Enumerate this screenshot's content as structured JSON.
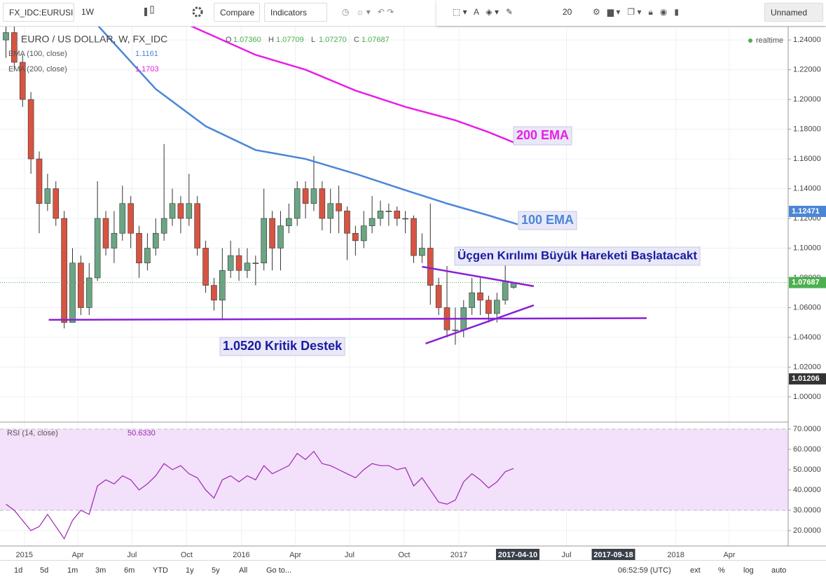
{
  "toolbar": {
    "symbol": "FX_IDC:EURUSI",
    "interval": "1W",
    "compare": "Compare",
    "indicators": "Indicators",
    "size": "20",
    "layout": "Unnamed"
  },
  "chart_data": [
    {
      "type": "candlestick",
      "title": "EURO / US DOLLAR, W, FX_IDC",
      "ohlc_legend": [
        "O",
        "1.07360",
        "H",
        "1.07709",
        "L",
        "1.07270",
        "C",
        "1.07687"
      ],
      "status": "realtime",
      "x": [
        "2014-12-01",
        "2014-12-15",
        "2014-12-29",
        "2015-01-12",
        "2015-01-26",
        "2015-02-09",
        "2015-02-23",
        "2015-03-09",
        "2015-03-23",
        "2015-04-06",
        "2015-04-20",
        "2015-05-04",
        "2015-05-18",
        "2015-06-01",
        "2015-06-15",
        "2015-06-29",
        "2015-07-13",
        "2015-07-27",
        "2015-08-10",
        "2015-08-24",
        "2015-09-07",
        "2015-09-21",
        "2015-10-05",
        "2015-10-19",
        "2015-11-02",
        "2015-11-16",
        "2015-11-30",
        "2015-12-14",
        "2015-12-28",
        "2016-01-11",
        "2016-01-25",
        "2016-02-08",
        "2016-02-22",
        "2016-03-07",
        "2016-03-21",
        "2016-04-04",
        "2016-04-18",
        "2016-05-02",
        "2016-05-16",
        "2016-05-30",
        "2016-06-13",
        "2016-06-27",
        "2016-07-11",
        "2016-07-25",
        "2016-08-08",
        "2016-08-22",
        "2016-09-05",
        "2016-09-19",
        "2016-10-03",
        "2016-10-17",
        "2016-10-31",
        "2016-11-14",
        "2016-11-28",
        "2016-12-12",
        "2016-12-26",
        "2017-01-09",
        "2017-01-23",
        "2017-02-06",
        "2017-02-20",
        "2017-03-06",
        "2017-03-20",
        "2017-04-03"
      ],
      "open": [
        1.24,
        1.245,
        1.225,
        1.2,
        1.16,
        1.13,
        1.14,
        1.12,
        1.05,
        1.09,
        1.06,
        1.08,
        1.12,
        1.1,
        1.11,
        1.13,
        1.11,
        1.09,
        1.1,
        1.11,
        1.12,
        1.13,
        1.12,
        1.13,
        1.1,
        1.075,
        1.065,
        1.085,
        1.095,
        1.085,
        1.09,
        1.09,
        1.12,
        1.1,
        1.115,
        1.12,
        1.14,
        1.13,
        1.14,
        1.12,
        1.13,
        1.125,
        1.11,
        1.105,
        1.115,
        1.12,
        1.125,
        1.125,
        1.12,
        1.12,
        1.095,
        1.1,
        1.075,
        1.06,
        1.045,
        1.045,
        1.06,
        1.07,
        1.065,
        1.056,
        1.065,
        1.0736
      ],
      "high": [
        1.252,
        1.25,
        1.23,
        1.205,
        1.165,
        1.15,
        1.145,
        1.125,
        1.1,
        1.095,
        1.09,
        1.145,
        1.125,
        1.125,
        1.142,
        1.135,
        1.115,
        1.11,
        1.12,
        1.17,
        1.14,
        1.135,
        1.15,
        1.135,
        1.105,
        1.08,
        1.1,
        1.105,
        1.1,
        1.1,
        1.095,
        1.14,
        1.125,
        1.125,
        1.13,
        1.145,
        1.145,
        1.162,
        1.145,
        1.14,
        1.142,
        1.128,
        1.115,
        1.125,
        1.135,
        1.132,
        1.13,
        1.128,
        1.125,
        1.122,
        1.11,
        1.13,
        1.08,
        1.088,
        1.06,
        1.065,
        1.08,
        1.08,
        1.068,
        1.07,
        1.09,
        1.07709
      ],
      "low": [
        1.228,
        1.22,
        1.195,
        1.15,
        1.11,
        1.125,
        1.115,
        1.046,
        1.05,
        1.055,
        1.055,
        1.078,
        1.095,
        1.09,
        1.105,
        1.1,
        1.08,
        1.085,
        1.095,
        1.105,
        1.115,
        1.11,
        1.115,
        1.095,
        1.07,
        1.058,
        1.052,
        1.08,
        1.078,
        1.08,
        1.075,
        1.085,
        1.085,
        1.085,
        1.11,
        1.115,
        1.12,
        1.125,
        1.112,
        1.11,
        1.11,
        1.092,
        1.095,
        1.1,
        1.11,
        1.115,
        1.115,
        1.115,
        1.11,
        1.09,
        1.09,
        1.062,
        1.055,
        1.04,
        1.035,
        1.04,
        1.055,
        1.055,
        1.05,
        1.05,
        1.062,
        1.0727
      ],
      "close": [
        1.245,
        1.225,
        1.2,
        1.16,
        1.13,
        1.14,
        1.12,
        1.05,
        1.09,
        1.06,
        1.08,
        1.12,
        1.1,
        1.11,
        1.13,
        1.11,
        1.09,
        1.1,
        1.11,
        1.12,
        1.13,
        1.12,
        1.13,
        1.1,
        1.075,
        1.065,
        1.085,
        1.095,
        1.085,
        1.09,
        1.09,
        1.12,
        1.1,
        1.115,
        1.12,
        1.14,
        1.13,
        1.14,
        1.12,
        1.13,
        1.125,
        1.11,
        1.105,
        1.115,
        1.12,
        1.125,
        1.125,
        1.12,
        1.12,
        1.095,
        1.1,
        1.075,
        1.06,
        1.045,
        1.045,
        1.06,
        1.07,
        1.065,
        1.056,
        1.065,
        1.078,
        1.07687
      ],
      "up_color": "#6ba583",
      "down_color": "#d75442",
      "lines": [
        {
          "name": "EMA (100, close)",
          "legend_value": "1.1161",
          "color": "#4a86d8",
          "x": [
            "2015-05-04",
            "2015-08-10",
            "2015-11-02",
            "2016-01-25",
            "2016-04-18",
            "2016-07-11",
            "2016-10-03",
            "2016-12-12",
            "2017-02-20",
            "2017-04-10"
          ],
          "values": [
            1.25,
            1.207,
            1.182,
            1.166,
            1.16,
            1.15,
            1.139,
            1.13,
            1.122,
            1.116
          ]
        },
        {
          "name": "EMA (200, close)",
          "legend_value": "1.1703",
          "color": "#e91ee5",
          "x": [
            "2015-10-05",
            "2016-01-25",
            "2016-04-18",
            "2016-07-11",
            "2016-10-03",
            "2016-12-26",
            "2017-02-20",
            "2017-04-10"
          ],
          "values": [
            1.25,
            1.23,
            1.22,
            1.206,
            1.195,
            1.186,
            1.178,
            1.17
          ]
        }
      ],
      "trendlines": [
        {
          "color": "#8a1fd6",
          "x": [
            "2015-02-11",
            "2017-11-13"
          ],
          "values": [
            1.0518,
            1.0529
          ]
        },
        {
          "color": "#8a1fd6",
          "x": [
            "2016-10-31",
            "2017-05-07"
          ],
          "values": [
            1.0875,
            1.0744
          ]
        },
        {
          "color": "#8a1fd6",
          "x": [
            "2016-11-06",
            "2017-05-07"
          ],
          "values": [
            1.0358,
            1.0616
          ]
        }
      ],
      "annotations": [
        {
          "text": "200 EMA",
          "color": "#e91ee5"
        },
        {
          "text": "100 EMA",
          "color": "#4a86d8"
        },
        {
          "text": "Üçgen Kırılımı Büyük Hareketi Başlatacakt",
          "color": "#1a1aa0"
        },
        {
          "text": "1.0520 Kritik Destek",
          "color": "#1a1aa0"
        }
      ],
      "axis_markers": [
        {
          "value": 1.12471,
          "label": "1.12471",
          "color": "#4a86d8"
        },
        {
          "value": 1.07687,
          "label": "1.07687",
          "color": "#4caf50"
        },
        {
          "value": 1.01206,
          "label": "1.01206",
          "color": "#333333"
        }
      ],
      "ylim": [
        0.983,
        1.249
      ],
      "yticks": [
        {
          "value": 1.24,
          "label": "1.24000"
        },
        {
          "value": 1.22,
          "label": "1.22000"
        },
        {
          "value": 1.2,
          "label": "1.20000"
        },
        {
          "value": 1.18,
          "label": "1.18000"
        },
        {
          "value": 1.16,
          "label": "1.16000"
        },
        {
          "value": 1.14,
          "label": "1.14000"
        },
        {
          "value": 1.12,
          "label": "1.12000"
        },
        {
          "value": 1.1,
          "label": "1.10000"
        },
        {
          "value": 1.08,
          "label": "1.08000"
        },
        {
          "value": 1.06,
          "label": "1.06000"
        },
        {
          "value": 1.04,
          "label": "1.04000"
        },
        {
          "value": 1.02,
          "label": "1.02000"
        },
        {
          "value": 1.0,
          "label": "1.00000"
        }
      ],
      "xlim": [
        "2014-11-21",
        "2018-07-09"
      ],
      "xticks": [
        {
          "value": "2015-01-01",
          "label": "2015"
        },
        {
          "value": "2015-04-01",
          "label": "Apr"
        },
        {
          "value": "2015-07-01",
          "label": "Jul"
        },
        {
          "value": "2015-10-01",
          "label": "Oct"
        },
        {
          "value": "2016-01-01",
          "label": "2016"
        },
        {
          "value": "2016-04-01",
          "label": "Apr"
        },
        {
          "value": "2016-07-01",
          "label": "Jul"
        },
        {
          "value": "2016-10-01",
          "label": "Oct"
        },
        {
          "value": "2017-01-01",
          "label": "2017"
        },
        {
          "value": "2017-07-01",
          "label": "Jul"
        },
        {
          "value": "2018-01-01",
          "label": "2018"
        },
        {
          "value": "2018-04-01",
          "label": "Apr"
        }
      ],
      "x_markers": [
        "2017-04-10",
        "2017-09-18"
      ],
      "grid": true
    },
    {
      "type": "line",
      "title": "RSI (14, close)",
      "legend_value": "50.6330",
      "color": "#9c27b0",
      "values": [
        33,
        30,
        25,
        20,
        22,
        28,
        22,
        16,
        25,
        30,
        28,
        42,
        45,
        43,
        47,
        45,
        40,
        43,
        47,
        53,
        50,
        52,
        48,
        46,
        40,
        36,
        45,
        47,
        44,
        47,
        45,
        52,
        48,
        50,
        52,
        58,
        55,
        59,
        53,
        52,
        50,
        48,
        46,
        50,
        53,
        52,
        52,
        50,
        51,
        42,
        46,
        40,
        34,
        33,
        35,
        44,
        48,
        45,
        41,
        44,
        49,
        50.633
      ],
      "band": [
        30,
        70
      ],
      "band_color": "#f3e0fb",
      "ylim": [
        12.4,
        73.1
      ],
      "yticks": [
        {
          "value": 70,
          "label": "70.0000"
        },
        {
          "value": 60,
          "label": "60.0000"
        },
        {
          "value": 50,
          "label": "50.0000"
        },
        {
          "value": 40,
          "label": "40.0000"
        },
        {
          "value": 30,
          "label": "30.0000"
        },
        {
          "value": 20,
          "label": "20.0000"
        }
      ],
      "grid": true
    }
  ],
  "bottom_bar": {
    "ranges": [
      "1d",
      "5d",
      "1m",
      "3m",
      "6m",
      "YTD",
      "1y",
      "5y",
      "All"
    ],
    "goto": "Go to...",
    "time": "06:52:59 (UTC)",
    "options": [
      "ext",
      "%",
      "log",
      "auto"
    ]
  }
}
